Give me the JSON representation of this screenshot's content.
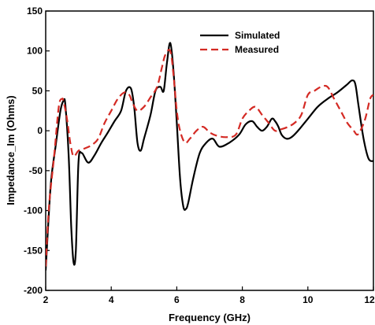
{
  "chart_data": {
    "type": "line",
    "xlabel": "Frequency (GHz)",
    "ylabel": "Impedance_Im (Ohms)",
    "xlim": [
      2,
      12
    ],
    "ylim": [
      -200,
      150
    ],
    "xticks": [
      2,
      4,
      6,
      8,
      10,
      12
    ],
    "yticks": [
      150,
      100,
      50,
      0,
      -50,
      -100,
      -150,
      -200
    ],
    "xtick_labels": [
      "2",
      "4",
      "6",
      "8",
      "10",
      "12"
    ],
    "ytick_labels": [
      "150",
      "100",
      "50",
      "0",
      "-50",
      "-100",
      "-150",
      "-200"
    ],
    "grid": false,
    "legend_position": "top-right",
    "series": [
      {
        "name": "Simulated",
        "color": "#000000",
        "style": "solid",
        "x": [
          2.0,
          2.15,
          2.3,
          2.45,
          2.55,
          2.6,
          2.7,
          2.78,
          2.85,
          2.92,
          3.0,
          3.1,
          3.3,
          3.5,
          3.7,
          3.9,
          4.1,
          4.3,
          4.45,
          4.6,
          4.7,
          4.8,
          4.9,
          5.0,
          5.2,
          5.35,
          5.5,
          5.6,
          5.7,
          5.8,
          5.9,
          6.0,
          6.1,
          6.2,
          6.28,
          6.35,
          6.5,
          6.7,
          6.9,
          7.1,
          7.3,
          7.6,
          7.9,
          8.1,
          8.3,
          8.45,
          8.6,
          8.75,
          8.9,
          9.0,
          9.1,
          9.2,
          9.35,
          9.5,
          9.7,
          10.0,
          10.3,
          10.6,
          10.9,
          11.2,
          11.35,
          11.45,
          11.55,
          11.7,
          11.85,
          12.0
        ],
        "y": [
          -175,
          -70,
          -20,
          25,
          38,
          32,
          -30,
          -120,
          -165,
          -150,
          -40,
          -28,
          -40,
          -30,
          -15,
          -2,
          12,
          25,
          50,
          53,
          30,
          -15,
          -25,
          -10,
          20,
          50,
          55,
          50,
          85,
          110,
          75,
          10,
          -60,
          -95,
          -98,
          -90,
          -60,
          -28,
          -15,
          -10,
          -20,
          -15,
          -5,
          8,
          12,
          5,
          0,
          5,
          15,
          12,
          5,
          -5,
          -10,
          -8,
          0,
          15,
          30,
          40,
          48,
          58,
          63,
          58,
          30,
          -10,
          -35,
          -38
        ]
      },
      {
        "name": "Measured",
        "color": "#d42a24",
        "style": "dashed",
        "x": [
          2.0,
          2.1,
          2.25,
          2.4,
          2.5,
          2.55,
          2.65,
          2.75,
          2.85,
          3.0,
          3.2,
          3.4,
          3.6,
          3.8,
          4.0,
          4.2,
          4.4,
          4.55,
          4.65,
          4.8,
          5.0,
          5.2,
          5.4,
          5.55,
          5.65,
          5.8,
          5.9,
          6.0,
          6.1,
          6.25,
          6.4,
          6.6,
          6.8,
          7.0,
          7.2,
          7.5,
          7.8,
          8.0,
          8.2,
          8.4,
          8.6,
          8.8,
          9.0,
          9.2,
          9.4,
          9.6,
          9.8,
          10.0,
          10.2,
          10.4,
          10.6,
          10.8,
          11.0,
          11.2,
          11.4,
          11.5,
          11.6,
          11.75,
          11.9,
          12.0
        ],
        "y": [
          -170,
          -95,
          -35,
          30,
          40,
          36,
          15,
          -15,
          -32,
          -25,
          -22,
          -18,
          -10,
          10,
          25,
          40,
          48,
          45,
          35,
          25,
          30,
          42,
          55,
          80,
          95,
          100,
          70,
          25,
          0,
          -15,
          -10,
          0,
          5,
          -2,
          -6,
          -8,
          -5,
          15,
          25,
          30,
          20,
          10,
          0,
          2,
          5,
          10,
          20,
          45,
          50,
          55,
          55,
          40,
          25,
          10,
          0,
          -5,
          0,
          15,
          40,
          45
        ]
      }
    ]
  }
}
